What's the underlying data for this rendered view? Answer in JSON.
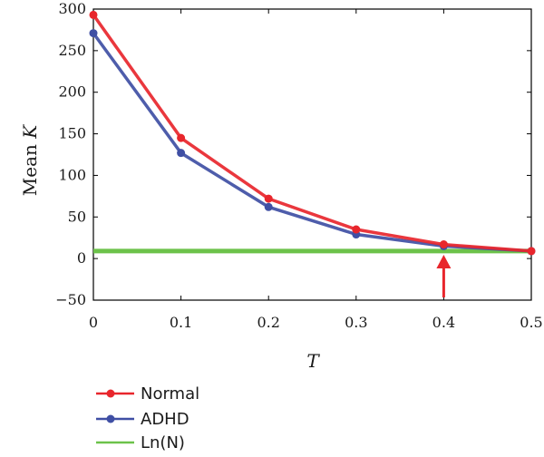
{
  "chart_data": {
    "type": "line",
    "x": [
      0,
      0.1,
      0.2,
      0.3,
      0.4,
      0.5
    ],
    "x_tick_labels": [
      "0",
      "0.1",
      "0.2",
      "0.3",
      "0.4",
      "0.5"
    ],
    "y_tick_labels": [
      "300",
      "250",
      "200",
      "150",
      "100",
      "50",
      "0",
      "−50"
    ],
    "y_ticks": [
      300,
      250,
      200,
      150,
      100,
      50,
      0,
      -50
    ],
    "xlim": [
      0,
      0.5
    ],
    "ylim": [
      -50,
      300
    ],
    "xlabel": "T",
    "ylabel_prefix": "Mean ",
    "ylabel_var": "K",
    "series": [
      {
        "name": "Normal",
        "color": "#e8262c",
        "values": [
          293,
          145,
          72,
          35,
          17,
          9
        ]
      },
      {
        "name": "ADHD",
        "color": "#3f4fa4",
        "values": [
          271,
          127,
          62,
          29,
          15,
          9
        ]
      },
      {
        "name": "Ln(N)",
        "color": "#6cc24a",
        "values": [
          9,
          9,
          9,
          9,
          9,
          9
        ]
      }
    ],
    "annotation": {
      "type": "arrow",
      "x": 0.4,
      "color": "#e8262c"
    },
    "grid": false,
    "legend_position": "bottom-left"
  }
}
